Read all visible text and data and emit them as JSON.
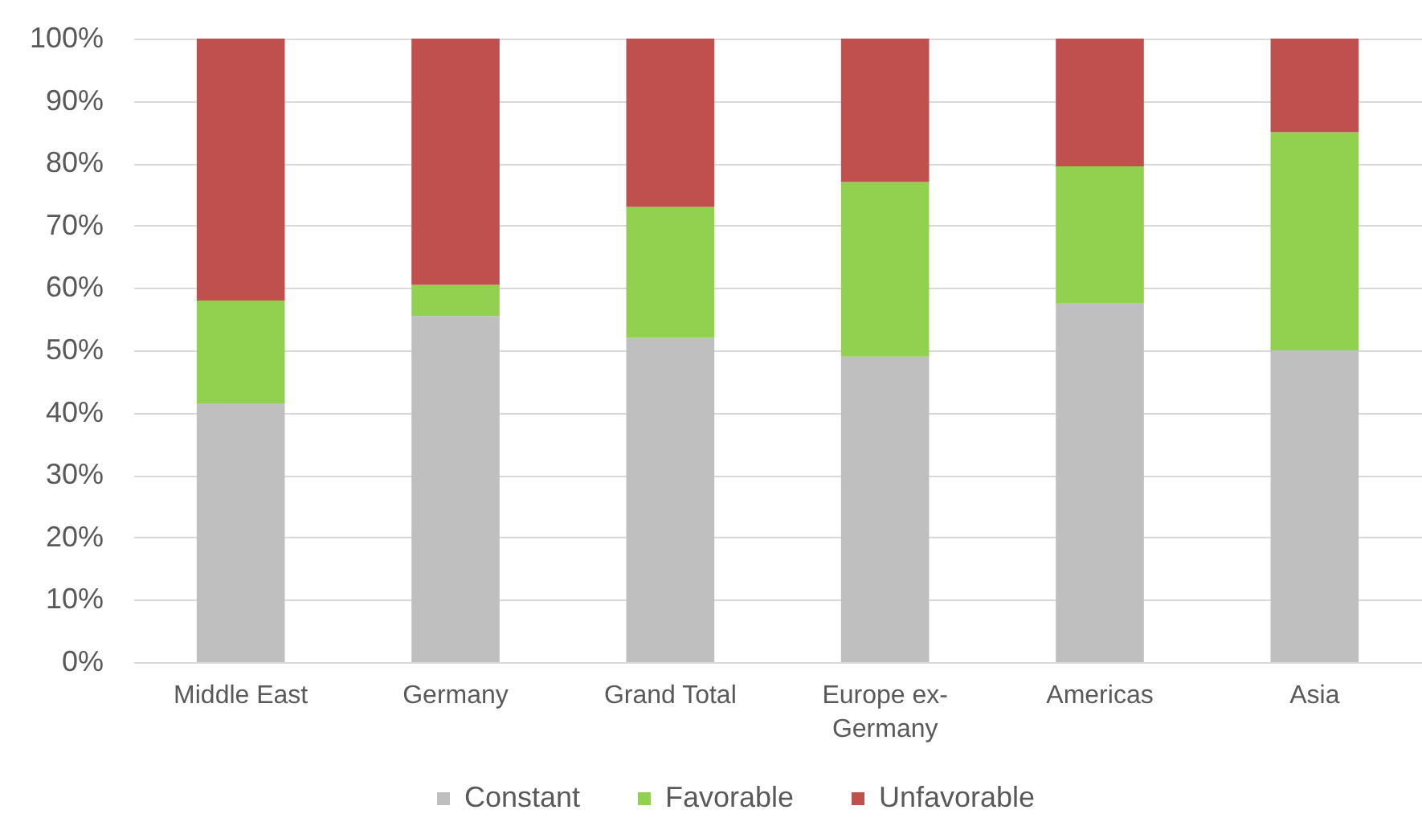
{
  "chart_data": {
    "type": "bar",
    "stacked": true,
    "categories": [
      "Middle East",
      "Germany",
      "Grand Total",
      "Europe ex-Germany",
      "Americas",
      "Asia"
    ],
    "series": [
      {
        "name": "Constant",
        "color": "#bfbfbf",
        "values": [
          41.5,
          55.5,
          52,
          49,
          57.5,
          50
        ]
      },
      {
        "name": "Favorable",
        "color": "#92d050",
        "values": [
          16.5,
          5,
          21,
          28,
          22,
          35
        ]
      },
      {
        "name": "Unfavorable",
        "color": "#c0504d",
        "values": [
          42,
          39.5,
          27,
          23,
          20.5,
          15
        ]
      }
    ],
    "ylim": [
      0,
      100
    ],
    "yticks": [
      {
        "value": 0,
        "label": "0%"
      },
      {
        "value": 10,
        "label": "10%"
      },
      {
        "value": 20,
        "label": "20%"
      },
      {
        "value": 30,
        "label": "30%"
      },
      {
        "value": 40,
        "label": "40%"
      },
      {
        "value": 50,
        "label": "50%"
      },
      {
        "value": 60,
        "label": "60%"
      },
      {
        "value": 70,
        "label": "70%"
      },
      {
        "value": 80,
        "label": "80%"
      },
      {
        "value": 90,
        "label": "90%"
      },
      {
        "value": 100,
        "label": "100%"
      }
    ],
    "grid": true,
    "legend": "bottom"
  }
}
